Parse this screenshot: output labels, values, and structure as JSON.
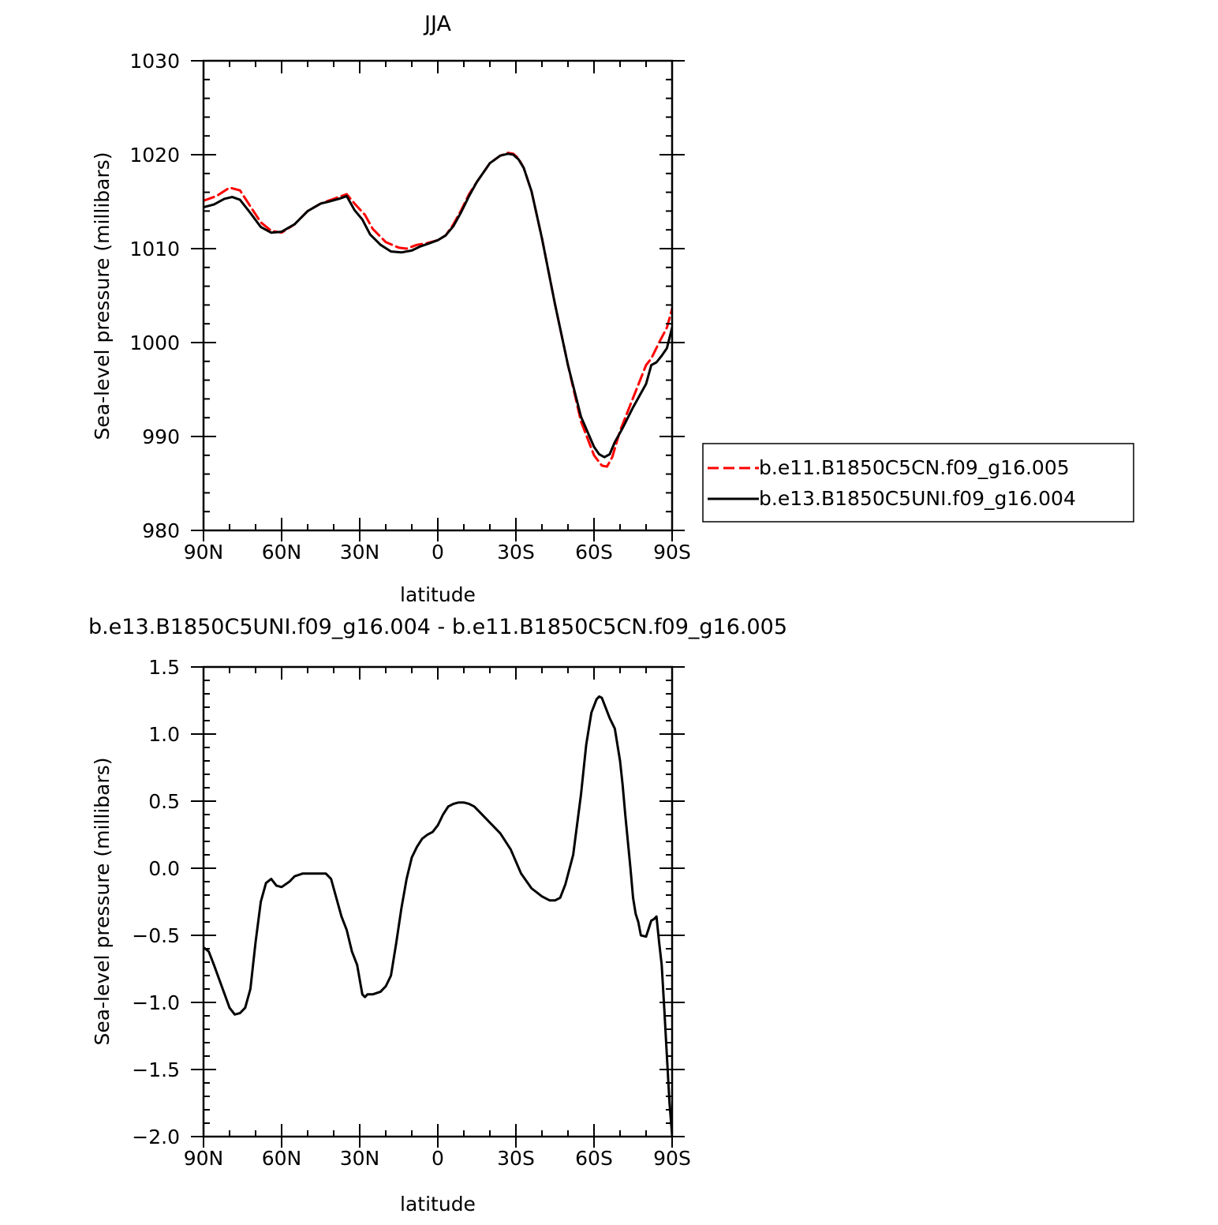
{
  "chart_data": [
    {
      "type": "line",
      "title": "JJA",
      "xlabel": "latitude",
      "ylabel": "Sea-level pressure (millibars)",
      "xlim": [
        90,
        -90
      ],
      "ylim": [
        980,
        1030
      ],
      "x_ticks": [
        {
          "value": 90,
          "label": "90N"
        },
        {
          "value": 60,
          "label": "60N"
        },
        {
          "value": 30,
          "label": "30N"
        },
        {
          "value": 0,
          "label": "0"
        },
        {
          "value": -30,
          "label": "30S"
        },
        {
          "value": -60,
          "label": "60S"
        },
        {
          "value": -90,
          "label": "90S"
        }
      ],
      "y_ticks": [
        {
          "value": 980,
          "label": "980"
        },
        {
          "value": 990,
          "label": "990"
        },
        {
          "value": 1000,
          "label": "1000"
        },
        {
          "value": 1010,
          "label": "1010"
        },
        {
          "value": 1020,
          "label": "1020"
        },
        {
          "value": 1030,
          "label": "1030"
        }
      ],
      "grid": false,
      "legend": {
        "placement": "right"
      },
      "series": [
        {
          "name": "b.e11.B1850C5CN.f09_g16.005",
          "color": "#ff0000",
          "dash": "dashed",
          "x": [
            90,
            85,
            80,
            76,
            72,
            68,
            64,
            60,
            55,
            50,
            45,
            42,
            38,
            35,
            32,
            28,
            25,
            20,
            15,
            12,
            8,
            4,
            0,
            -3,
            -6,
            -9,
            -12,
            -15,
            -20,
            -24,
            -27,
            -29,
            -31,
            -33,
            -36,
            -40,
            -45,
            -50,
            -55,
            -60,
            -63,
            -65,
            -67,
            -70,
            -75,
            -80,
            -82,
            -85,
            -88,
            -90
          ],
          "y": [
            1015.1,
            1015.6,
            1016.5,
            1016.2,
            1014.5,
            1012.8,
            1011.9,
            1011.7,
            1012.6,
            1014.0,
            1014.8,
            1015.1,
            1015.5,
            1015.8,
            1014.8,
            1013.6,
            1012.1,
            1010.7,
            1010.1,
            1010.0,
            1010.4,
            1010.6,
            1010.9,
            1011.4,
            1012.6,
            1014.1,
            1015.8,
            1017.1,
            1019.1,
            1019.9,
            1020.2,
            1020.1,
            1019.6,
            1018.6,
            1016.1,
            1011.1,
            1004.1,
            997.6,
            991.6,
            988.0,
            986.9,
            986.8,
            987.8,
            990.6,
            994.1,
            997.6,
            998.3,
            1000.0,
            1001.6,
            1003.6
          ]
        },
        {
          "name": "b.e13.B1850C5UNI.f09_g16.004",
          "color": "#000000",
          "dash": "solid",
          "x": [
            90,
            86,
            82,
            79,
            76,
            72,
            68,
            64,
            60,
            55,
            50,
            45,
            42,
            38,
            35,
            32,
            29,
            26,
            22,
            18,
            14,
            10,
            7,
            3,
            0,
            -3,
            -6,
            -9,
            -12,
            -15,
            -20,
            -24,
            -27,
            -29,
            -31,
            -33,
            -36,
            -40,
            -45,
            -50,
            -55,
            -60,
            -62,
            -64,
            -66,
            -68,
            -71,
            -75,
            -80,
            -82,
            -84,
            -86,
            -88,
            -90
          ],
          "y": [
            1014.4,
            1014.7,
            1015.3,
            1015.5,
            1015.2,
            1013.8,
            1012.3,
            1011.7,
            1011.8,
            1012.6,
            1014.0,
            1014.8,
            1015.0,
            1015.3,
            1015.6,
            1014.1,
            1013.1,
            1011.5,
            1010.4,
            1009.7,
            1009.6,
            1009.8,
            1010.2,
            1010.6,
            1010.9,
            1011.4,
            1012.4,
            1013.9,
            1015.6,
            1017.1,
            1019.1,
            1019.9,
            1020.1,
            1020.0,
            1019.5,
            1018.6,
            1016.1,
            1011.1,
            1004.1,
            997.6,
            992.1,
            988.9,
            988.1,
            987.8,
            988.1,
            989.4,
            990.9,
            993.1,
            995.6,
            997.6,
            997.9,
            998.6,
            999.4,
            1001.6
          ]
        }
      ]
    },
    {
      "type": "line",
      "title": "b.e13.B1850C5UNI.f09_g16.004 - b.e11.B1850C5CN.f09_g16.005",
      "xlabel": "latitude",
      "ylabel": "Sea-level pressure (millibars)",
      "xlim": [
        90,
        -90
      ],
      "ylim": [
        -2.0,
        1.5
      ],
      "x_ticks": [
        {
          "value": 90,
          "label": "90N"
        },
        {
          "value": 60,
          "label": "60N"
        },
        {
          "value": 30,
          "label": "30N"
        },
        {
          "value": 0,
          "label": "0"
        },
        {
          "value": -30,
          "label": "30S"
        },
        {
          "value": -60,
          "label": "60S"
        },
        {
          "value": -90,
          "label": "90S"
        }
      ],
      "y_ticks": [
        {
          "value": -2.0,
          "label": "−2.0"
        },
        {
          "value": -1.5,
          "label": "−1.5"
        },
        {
          "value": -1.0,
          "label": "−1.0"
        },
        {
          "value": -0.5,
          "label": "−0.5"
        },
        {
          "value": 0.0,
          "label": "0.0"
        },
        {
          "value": 0.5,
          "label": "0.5"
        },
        {
          "value": 1.0,
          "label": "1.0"
        },
        {
          "value": 1.5,
          "label": "1.5"
        }
      ],
      "grid": false,
      "series": [
        {
          "color": "#000000",
          "dash": "solid",
          "x": [
            90,
            88,
            86,
            83,
            80,
            78,
            76,
            74,
            72,
            70,
            68,
            66,
            64,
            62,
            60,
            57,
            55,
            52,
            50,
            48,
            45,
            43,
            41,
            39,
            37,
            35,
            33,
            31,
            29,
            28,
            27,
            25,
            22,
            20,
            18,
            16,
            14,
            12,
            10,
            8,
            6,
            4,
            2,
            0,
            -2,
            -4,
            -6,
            -8,
            -10,
            -12,
            -14,
            -16,
            -20,
            -24,
            -28,
            -32,
            -36,
            -40,
            -43,
            -45,
            -47,
            -49,
            -52,
            -55,
            -57,
            -59,
            -61,
            -62,
            -63,
            -64,
            -66,
            -68,
            -70,
            -71,
            -72,
            -73,
            -74,
            -75,
            -76,
            -77,
            -78,
            -80,
            -81,
            -82,
            -83,
            -84,
            -85,
            -86,
            -87,
            -88,
            -89,
            -90
          ],
          "y": [
            -0.59,
            -0.62,
            -0.72,
            -0.88,
            -1.04,
            -1.09,
            -1.08,
            -1.04,
            -0.9,
            -0.55,
            -0.25,
            -0.11,
            -0.08,
            -0.13,
            -0.14,
            -0.1,
            -0.06,
            -0.04,
            -0.04,
            -0.04,
            -0.04,
            -0.04,
            -0.08,
            -0.22,
            -0.36,
            -0.46,
            -0.62,
            -0.72,
            -0.94,
            -0.96,
            -0.94,
            -0.94,
            -0.92,
            -0.88,
            -0.8,
            -0.56,
            -0.3,
            -0.08,
            0.08,
            0.16,
            0.22,
            0.25,
            0.27,
            0.32,
            0.4,
            0.46,
            0.48,
            0.49,
            0.49,
            0.48,
            0.46,
            0.42,
            0.34,
            0.26,
            0.14,
            -0.04,
            -0.15,
            -0.21,
            -0.24,
            -0.24,
            -0.22,
            -0.12,
            0.1,
            0.55,
            0.92,
            1.16,
            1.26,
            1.28,
            1.27,
            1.22,
            1.12,
            1.04,
            0.8,
            0.62,
            0.4,
            0.2,
            0.0,
            -0.22,
            -0.34,
            -0.4,
            -0.5,
            -0.51,
            -0.45,
            -0.39,
            -0.38,
            -0.36,
            -0.55,
            -0.72,
            -1.05,
            -1.4,
            -1.75,
            -1.99
          ]
        }
      ]
    }
  ]
}
